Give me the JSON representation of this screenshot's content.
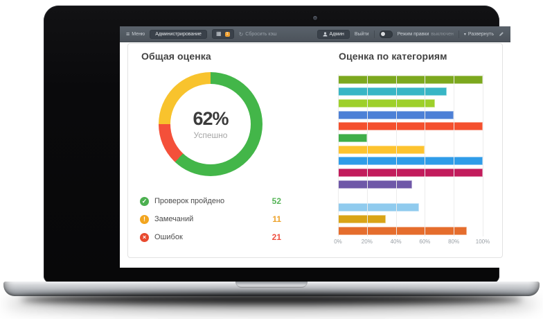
{
  "navbar": {
    "menu": "Меню",
    "admin": "Администрирование",
    "apps_badge": "1",
    "cache": "Сбросить кэш",
    "user": "Админ",
    "logout": "Выйти",
    "edit_mode": "Режим правки",
    "edit_mode_state": "выключен",
    "expand": "Развернуть"
  },
  "panels": {
    "overall_title": "Общая оценка",
    "categories_title": "Оценка по категориям"
  },
  "chart_data": [
    {
      "type": "pie",
      "subtype": "donut",
      "title": "Общая оценка",
      "center_value": "62%",
      "center_caption": "Успешно",
      "slices": [
        {
          "label": "Проверок пройдено",
          "value": 52,
          "percent": 62,
          "color": "#43b649"
        },
        {
          "label": "Замечаний",
          "value": 11,
          "percent": 13,
          "color": "#f4503a"
        },
        {
          "label": "Ошибок",
          "value": 21,
          "percent": 25,
          "color": "#f8c32d"
        }
      ],
      "legend": [
        {
          "icon": "check-circle-icon",
          "glyph": "✓",
          "icon_color": "#4cb050",
          "label": "Проверок пройдено",
          "value": "52",
          "value_color": "#55b457"
        },
        {
          "icon": "exclamation-circle-icon",
          "glyph": "!",
          "icon_color": "#f2a51f",
          "label": "Замечаний",
          "value": "11",
          "value_color": "#eda32c"
        },
        {
          "icon": "cross-circle-icon",
          "glyph": "×",
          "icon_color": "#e84a2f",
          "label": "Ошибок",
          "value": "21",
          "value_color": "#ef5040"
        }
      ]
    },
    {
      "type": "bar",
      "orientation": "horizontal",
      "title": "Оценка по категориям",
      "xlim": [
        0,
        100
      ],
      "x_ticks": [
        "0%",
        "20%",
        "40%",
        "60%",
        "80%",
        "100%"
      ],
      "grid": true,
      "values": [
        100,
        75,
        67,
        80,
        100,
        20,
        60,
        100,
        100,
        51,
        0,
        56,
        33,
        89
      ],
      "colors": [
        "#7ca81e",
        "#38b6c5",
        "#9ed02b",
        "#4d80d6",
        "#f4502e",
        "#3fae49",
        "#fdc32f",
        "#2f9ce8",
        "#c21c5c",
        "#6f58a8",
        "#cccccc",
        "#90cbee",
        "#d9a417",
        "#e56d2d"
      ]
    }
  ]
}
